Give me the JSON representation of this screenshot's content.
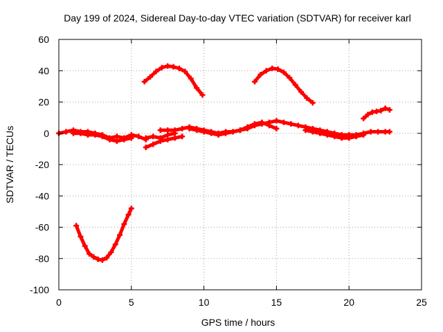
{
  "chart_data": {
    "type": "line",
    "title": "Day 199 of 2024, Sidereal Day-to-day VTEC variation (SDTVAR) for receiver karl",
    "xlabel": "GPS time / hours",
    "ylabel": "SDTVAR / TECUs",
    "xlim": [
      0,
      25
    ],
    "ylim": [
      -100,
      60
    ],
    "x_ticks": [
      0,
      5,
      10,
      15,
      20,
      25
    ],
    "y_ticks": [
      -100,
      -80,
      -60,
      -40,
      -20,
      0,
      20,
      40,
      60
    ],
    "grid": true,
    "legend": "none",
    "color": "#ff0000",
    "series": [
      {
        "name": "baseline-a",
        "x": [
          0,
          0.5,
          1.0,
          1.5,
          2.0,
          2.5,
          3.0,
          3.5,
          4.0,
          4.5,
          5.0,
          5.5,
          6.0
        ],
        "y": [
          0,
          1,
          2,
          1,
          1,
          0,
          -1,
          -3,
          -2,
          -3,
          -1,
          -2,
          -4
        ]
      },
      {
        "name": "baseline-b",
        "x": [
          1.0,
          1.5,
          2.0,
          2.5,
          3.0,
          3.5,
          4.0,
          4.5,
          5.0
        ],
        "y": [
          0,
          0,
          -1,
          -1,
          -2,
          -4,
          -5,
          -4,
          -3
        ]
      },
      {
        "name": "baseline-c",
        "x": [
          6.0,
          6.5,
          7.0,
          7.5,
          8.0,
          8.5
        ],
        "y": [
          -9,
          -7,
          -5,
          -4,
          -3,
          -2
        ]
      },
      {
        "name": "baseline-d",
        "x": [
          6.0,
          6.5,
          7.0,
          7.5,
          8.0
        ],
        "y": [
          -3,
          -2,
          -3,
          -1,
          0
        ]
      },
      {
        "name": "baseline-e",
        "x": [
          7.0,
          7.5,
          8.0,
          8.5,
          9.0,
          9.5,
          10.0,
          10.5,
          11.0,
          11.5,
          12.0,
          12.5,
          13.0,
          13.5,
          14.0,
          14.5,
          15.0,
          15.5,
          16.0,
          16.5,
          17.0,
          17.5,
          18.0,
          18.5,
          19.0,
          19.5,
          20.0,
          20.5,
          21.0,
          21.5,
          22.0,
          22.5,
          22.8
        ],
        "y": [
          2,
          2,
          2,
          3,
          4,
          3,
          2,
          1,
          0,
          1,
          1,
          2,
          3,
          5,
          6,
          7,
          8,
          7,
          6,
          5,
          4,
          3,
          2,
          1,
          0,
          -1,
          -1,
          -1,
          0,
          1,
          1,
          1,
          1
        ]
      },
      {
        "name": "baseline-f",
        "x": [
          9.0,
          9.5,
          10.0,
          10.5,
          11.0,
          11.5,
          12.0,
          12.5,
          13.0,
          13.5,
          14.0,
          14.5,
          15.0
        ],
        "y": [
          3,
          2,
          1,
          0,
          -1,
          0,
          1,
          2,
          4,
          6,
          7,
          5,
          3
        ]
      },
      {
        "name": "baseline-g",
        "x": [
          17.0,
          17.5,
          18.0,
          18.5,
          19.0,
          19.5,
          20.0,
          20.5,
          21.0
        ],
        "y": [
          2,
          1,
          0,
          -1,
          -2,
          -3,
          -3,
          -2,
          -1
        ]
      },
      {
        "name": "arc-1",
        "x": [
          1.2,
          1.5,
          1.8,
          2.1,
          2.4,
          2.7,
          3.0,
          3.3,
          3.6,
          3.9,
          4.2,
          4.5,
          4.8,
          5.0
        ],
        "y": [
          -59,
          -66,
          -72,
          -77,
          -79,
          -80.5,
          -81,
          -79.5,
          -76,
          -71,
          -65,
          -58,
          -52,
          -48
        ]
      },
      {
        "name": "arc-2",
        "x": [
          5.9,
          6.3,
          6.7,
          7.1,
          7.5,
          7.9,
          8.3,
          8.7,
          9.1,
          9.5,
          9.9
        ],
        "y": [
          33,
          36,
          39.5,
          42,
          43,
          42.5,
          41.5,
          39.5,
          35,
          29,
          24.5
        ]
      },
      {
        "name": "arc-3",
        "x": [
          13.5,
          13.9,
          14.3,
          14.7,
          15.1,
          15.5,
          15.9,
          16.3,
          16.7,
          17.1,
          17.5
        ],
        "y": [
          33,
          37.5,
          40,
          41.5,
          41,
          39,
          35.5,
          31,
          26.5,
          22.5,
          19.5
        ]
      },
      {
        "name": "arc-4",
        "x": [
          21.0,
          21.3,
          21.6,
          21.9,
          22.2,
          22.5,
          22.8
        ],
        "y": [
          9.5,
          12,
          13.5,
          14,
          14.5,
          16,
          15
        ]
      }
    ]
  }
}
